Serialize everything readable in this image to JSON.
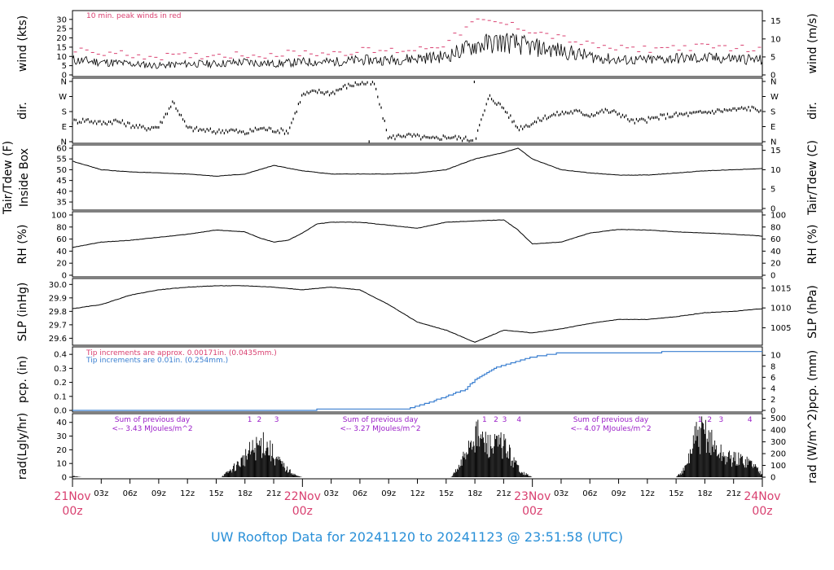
{
  "title": "UW Rooftop Data for 20241120  to  20241123 @ 23:51:58  (UTC)",
  "colors": {
    "trace": "#000000",
    "peak": "#d94070",
    "rain_a": "#d94070",
    "rain_b": "#3a7fd0",
    "solar_text": "#9b20c8",
    "date": "#d94070",
    "title": "#2a90d8"
  },
  "time_axis": {
    "hours_span": 72,
    "minor_ticks": [
      "03z",
      "06z",
      "09z",
      "12z",
      "15z",
      "18z",
      "21z",
      "03z",
      "06z",
      "09z",
      "12z",
      "15z",
      "18z",
      "21z",
      "03z",
      "06z",
      "09z",
      "12z",
      "15z",
      "18z",
      "21z"
    ],
    "day_labels": [
      {
        "day": "21Nov",
        "hour": "00z"
      },
      {
        "day": "22Nov",
        "hour": "00z"
      },
      {
        "day": "23Nov",
        "hour": "00z"
      },
      {
        "day": "24Nov",
        "hour": "00z"
      }
    ]
  },
  "chart_data": [
    {
      "type": "line",
      "id": "wind",
      "ylabel_left": "wind (kts)",
      "ylabel_right": "wind (m/s)",
      "left_ticks": [
        "0",
        "5",
        "10",
        "15",
        "20",
        "25",
        "30"
      ],
      "right_ticks": [
        "0",
        "5",
        "10",
        "15"
      ],
      "ylim": [
        0,
        33
      ],
      "annotation": "10 min. peak winds in red",
      "series": [
        {
          "role": "speed",
          "x": [
            0,
            3,
            6,
            9,
            12,
            15,
            18,
            21,
            24,
            27,
            30,
            33,
            36,
            39,
            42,
            45,
            48,
            51,
            54,
            57,
            60,
            63,
            66,
            69,
            72
          ],
          "values": [
            8,
            7,
            6,
            5,
            6,
            6,
            7,
            6,
            7,
            7,
            8,
            8,
            9,
            10,
            16,
            18,
            15,
            13,
            10,
            8,
            8,
            9,
            9,
            9,
            8
          ]
        },
        {
          "role": "peak",
          "x": [
            0,
            3,
            6,
            9,
            12,
            15,
            18,
            21,
            24,
            27,
            30,
            33,
            36,
            39,
            42,
            45,
            48,
            51,
            54,
            57,
            60,
            63,
            66,
            69,
            72
          ],
          "values": [
            13,
            12,
            11,
            10,
            10,
            11,
            11,
            11,
            12,
            12,
            13,
            13,
            14,
            17,
            29,
            28,
            24,
            20,
            16,
            14,
            14,
            15,
            15,
            15,
            13
          ]
        }
      ]
    },
    {
      "type": "scatter",
      "id": "direction",
      "ylabel_left": "dir.",
      "ylabel_right": "dir.",
      "left_ticks": [
        "N",
        "E",
        "S",
        "W",
        "N"
      ],
      "right_ticks": [
        "N",
        "E",
        "S",
        "W",
        "N"
      ],
      "ylim": [
        0,
        360
      ],
      "series": [
        {
          "name": "",
          "x": [
            0,
            1.5,
            3,
            4.5,
            6,
            7.5,
            9,
            10.5,
            12,
            13.5,
            15,
            16.5,
            18,
            19.5,
            21,
            22.5,
            24,
            25.5,
            27,
            28.5,
            30,
            31.5,
            33,
            34.5,
            36,
            37.5,
            39,
            40.5,
            42,
            43.5,
            45,
            46.5,
            48,
            49.5,
            51,
            52.5,
            54,
            55.5,
            57,
            58.5,
            60,
            61.5,
            63,
            64.5,
            66,
            67.5,
            69,
            70.5,
            72
          ],
          "values": [
            120,
            130,
            110,
            125,
            100,
            80,
            90,
            240,
            80,
            70,
            60,
            70,
            50,
            80,
            70,
            60,
            280,
            300,
            290,
            330,
            350,
            345,
            20,
            40,
            30,
            15,
            30,
            20,
            10,
            270,
            200,
            80,
            110,
            150,
            170,
            180,
            160,
            185,
            170,
            120,
            130,
            150,
            160,
            165,
            175,
            185,
            190,
            200,
            190
          ]
        }
      ]
    },
    {
      "type": "line",
      "id": "temperature",
      "ylabel_left": "Tair/Tdew (F)",
      "ylabel_left2": "Inside Box",
      "ylabel_right": "Tair/Tdew (C)",
      "left_ticks": [
        "35",
        "40",
        "45",
        "50",
        "55",
        "60"
      ],
      "right_ticks": [
        "0",
        "5",
        "10",
        "15"
      ],
      "ylim": [
        32,
        60
      ],
      "series": [
        {
          "name": "",
          "x": [
            0,
            3,
            6,
            9,
            12,
            15,
            18,
            19.5,
            21,
            24,
            27,
            30,
            33,
            36,
            39,
            42,
            45,
            46.5,
            48,
            51,
            54,
            57,
            60,
            63,
            66,
            69,
            72
          ],
          "values": [
            54,
            50,
            49,
            48.5,
            48,
            47,
            48,
            50,
            52,
            49.5,
            48,
            48,
            48,
            48.5,
            50,
            55,
            58,
            60,
            55,
            50,
            48.5,
            47.5,
            47.5,
            48.5,
            49.5,
            50,
            50.5
          ]
        }
      ]
    },
    {
      "type": "line",
      "id": "humidity",
      "ylabel_left": "RH (%)",
      "ylabel_right": "RH (%)",
      "left_ticks": [
        "0",
        "20",
        "40",
        "60",
        "80",
        "100"
      ],
      "right_ticks": [
        "0",
        "20",
        "40",
        "60",
        "80",
        "100"
      ],
      "ylim": [
        0,
        100
      ],
      "series": [
        {
          "name": "",
          "x": [
            0,
            3,
            6,
            9,
            12,
            15,
            18,
            19.5,
            21,
            22.5,
            24,
            25.5,
            27,
            30,
            33,
            36,
            39,
            42,
            45,
            46.5,
            48,
            51,
            54,
            57,
            60,
            63,
            66,
            69,
            72
          ],
          "values": [
            46,
            55,
            58,
            63,
            68,
            75,
            72,
            62,
            55,
            58,
            70,
            85,
            88,
            88,
            83,
            78,
            88,
            90,
            92,
            75,
            52,
            55,
            70,
            76,
            75,
            72,
            70,
            68,
            65
          ]
        }
      ]
    },
    {
      "type": "line",
      "id": "pressure",
      "ylabel_left": "SLP (inHg)",
      "ylabel_right": "SLP (hPa)",
      "left_ticks": [
        "29.6",
        "29.7",
        "29.8",
        "29.9",
        "30.0"
      ],
      "right_ticks": [
        "1005",
        "1010",
        "1015"
      ],
      "ylim": [
        29.56,
        30.02
      ],
      "series": [
        {
          "name": "",
          "x": [
            0,
            3,
            6,
            9,
            12,
            15,
            18,
            21,
            24,
            27,
            30,
            33,
            36,
            39,
            42,
            45,
            48,
            51,
            54,
            57,
            60,
            63,
            66,
            69,
            72
          ],
          "values": [
            29.82,
            29.85,
            29.92,
            29.96,
            29.98,
            29.99,
            29.99,
            29.98,
            29.96,
            29.98,
            29.96,
            29.85,
            29.72,
            29.66,
            29.57,
            29.66,
            29.64,
            29.67,
            29.71,
            29.74,
            29.74,
            29.76,
            29.79,
            29.8,
            29.82
          ]
        }
      ]
    },
    {
      "type": "line",
      "id": "precipitation",
      "ylabel_left": "pcp. (in)",
      "ylabel_right": "pcp. (mm)",
      "left_ticks": [
        "0.0",
        "0.1",
        "0.2",
        "0.3",
        "0.4"
      ],
      "right_ticks": [
        "0",
        "2",
        "4",
        "6",
        "8",
        "10"
      ],
      "ylim": [
        0,
        0.43
      ],
      "annotations": [
        "Tip increments are approx. 0.00171in. (0.0435mm.)",
        "Tip increments are 0.01in. (0.254mm.)"
      ],
      "series": [
        {
          "name": "",
          "x": [
            0,
            24,
            27,
            30,
            35,
            37,
            39,
            41,
            42,
            44,
            48,
            51,
            72
          ],
          "values": [
            0,
            0,
            0.01,
            0.01,
            0.01,
            0.05,
            0.1,
            0.15,
            0.22,
            0.3,
            0.38,
            0.41,
            0.42
          ]
        }
      ]
    },
    {
      "type": "area",
      "id": "solar",
      "ylabel_left": "rad(Lgly/hr)",
      "ylabel_right": "rad (W/m^2)",
      "left_ticks": [
        "0",
        "10",
        "20",
        "30",
        "40"
      ],
      "right_ticks": [
        "0",
        "100",
        "200",
        "300",
        "400",
        "500"
      ],
      "ylim": [
        0,
        44
      ],
      "day_summaries": [
        {
          "line1": "Sum of previous day",
          "line2": "<-- 3.43 MJoules/m^2",
          "marks": [
            "1",
            "2",
            "3"
          ]
        },
        {
          "line1": "Sum of previous day",
          "line2": "<-- 3.27 MJoules/m^2",
          "marks": [
            "1",
            "2",
            "3",
            "4"
          ]
        },
        {
          "line1": "Sum of previous day",
          "line2": "<-- 4.07 MJoules/m^2",
          "marks": [
            "1",
            "2",
            "3",
            "4"
          ]
        }
      ],
      "series": [
        {
          "name": "",
          "x": [
            0,
            1,
            15.5,
            16.5,
            17.5,
            18.5,
            19.5,
            20,
            20.5,
            21.5,
            22.5,
            23.5,
            24,
            39.5,
            40.5,
            41.5,
            42,
            43,
            44,
            45,
            46,
            47,
            48,
            63,
            64,
            65,
            66,
            67,
            68,
            69,
            70,
            71,
            72
          ],
          "values": [
            1,
            0,
            0,
            6,
            13,
            22,
            28,
            32,
            25,
            14,
            6,
            1,
            0,
            0,
            10,
            32,
            38,
            30,
            26,
            30,
            14,
            4,
            0,
            0,
            8,
            34,
            40,
            26,
            18,
            16,
            15,
            12,
            2
          ]
        }
      ]
    }
  ]
}
